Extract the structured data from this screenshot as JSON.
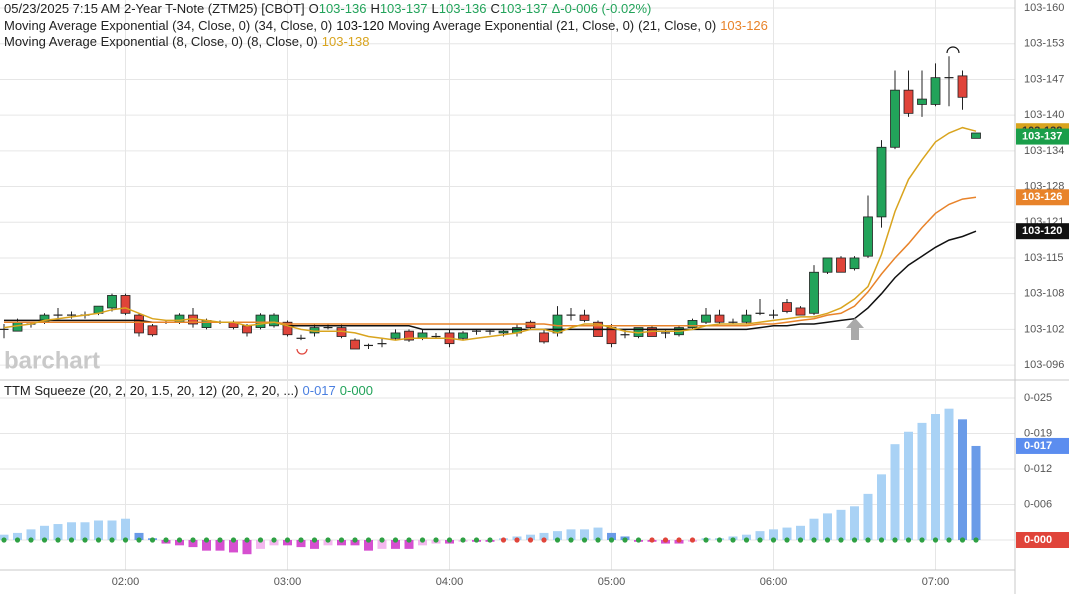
{
  "chart_data": [
    {
      "type": "candlestick",
      "title": "05/23/2025  7:15 AM 2-Year T-Note (ZTM25) [CBOT]",
      "readouts": [
        {
          "key": "O",
          "label": "103-136"
        },
        {
          "key": "H",
          "label": "103-137"
        },
        {
          "key": "L",
          "label": "103-136"
        },
        {
          "key": "C",
          "label": "103-137"
        }
      ],
      "change": "Δ-0-006 (-0.02%)",
      "watermark": "barchart",
      "categories": [
        null,
        null,
        null,
        null,
        null,
        null,
        null,
        null,
        null,
        "02:00",
        null,
        null,
        null,
        null,
        null,
        null,
        null,
        null,
        null,
        null,
        null,
        "03:00",
        null,
        null,
        null,
        null,
        null,
        null,
        null,
        null,
        null,
        null,
        null,
        "04:00",
        null,
        null,
        null,
        null,
        null,
        null,
        null,
        null,
        null,
        null,
        null,
        "05:00",
        null,
        null,
        null,
        null,
        null,
        null,
        null,
        null,
        null,
        null,
        null,
        "06:00",
        null,
        null,
        null,
        null,
        null,
        null,
        null,
        null,
        null,
        null,
        null,
        "07:00",
        null,
        null,
        null
      ],
      "ohlc": [
        [
          103.32,
          103.323,
          103.315,
          103.32
        ],
        [
          103.319,
          103.326,
          103.319,
          103.324
        ],
        [
          103.323,
          103.324,
          103.321,
          103.323
        ],
        [
          103.324,
          103.329,
          103.323,
          103.328
        ],
        [
          103.328,
          103.332,
          103.326,
          103.328
        ],
        [
          103.328,
          103.33,
          103.326,
          103.328
        ],
        [
          103.328,
          103.33,
          103.326,
          103.328
        ],
        [
          103.329,
          103.333,
          103.328,
          103.333
        ],
        [
          103.332,
          103.34,
          103.33,
          103.339
        ],
        [
          103.339,
          103.34,
          103.328,
          103.329
        ],
        [
          103.328,
          103.329,
          103.316,
          103.318
        ],
        [
          103.322,
          103.323,
          103.316,
          103.317
        ],
        [
          103.324,
          103.325,
          103.323,
          103.324
        ],
        [
          103.324,
          103.329,
          103.323,
          103.328
        ],
        [
          103.328,
          103.332,
          103.321,
          103.323
        ],
        [
          103.321,
          103.326,
          103.32,
          103.325
        ],
        [
          103.324,
          103.325,
          103.323,
          103.324
        ],
        [
          103.324,
          103.325,
          103.32,
          103.321
        ],
        [
          103.322,
          103.323,
          103.316,
          103.318
        ],
        [
          103.321,
          103.329,
          103.32,
          103.328
        ],
        [
          103.322,
          103.329,
          103.321,
          103.328
        ],
        [
          103.324,
          103.325,
          103.316,
          103.317
        ],
        [
          103.315,
          103.317,
          103.314,
          103.315
        ],
        [
          103.318,
          103.323,
          103.316,
          103.321
        ],
        [
          103.321,
          103.323,
          103.32,
          103.321
        ],
        [
          103.321,
          103.323,
          103.315,
          103.316
        ],
        [
          103.314,
          103.315,
          103.309,
          103.309
        ],
        [
          103.311,
          103.312,
          103.309,
          103.311
        ],
        [
          103.312,
          103.315,
          103.31,
          103.312
        ],
        [
          103.315,
          103.32,
          103.314,
          103.318
        ],
        [
          103.319,
          103.32,
          103.313,
          103.314
        ],
        [
          103.315,
          103.32,
          103.314,
          103.318
        ],
        [
          103.316,
          103.318,
          103.315,
          103.316
        ],
        [
          103.318,
          103.32,
          103.31,
          103.312
        ],
        [
          103.315,
          103.319,
          103.314,
          103.318
        ],
        [
          103.319,
          103.32,
          103.317,
          103.319
        ],
        [
          103.319,
          103.32,
          103.317,
          103.319
        ],
        [
          103.318,
          103.32,
          103.316,
          103.319
        ],
        [
          103.318,
          103.323,
          103.316,
          103.321
        ],
        [
          103.324,
          103.325,
          103.32,
          103.321
        ],
        [
          103.318,
          103.32,
          103.312,
          103.313
        ],
        [
          103.318,
          103.333,
          103.316,
          103.328
        ],
        [
          103.328,
          103.332,
          103.325,
          103.328
        ],
        [
          103.328,
          103.331,
          103.324,
          103.325
        ],
        [
          103.324,
          103.325,
          103.316,
          103.316
        ],
        [
          103.321,
          103.323,
          103.31,
          103.312
        ],
        [
          103.317,
          103.32,
          103.315,
          103.317
        ],
        [
          103.316,
          103.321,
          103.315,
          103.321
        ],
        [
          103.321,
          103.322,
          103.316,
          103.316
        ],
        [
          103.318,
          103.32,
          103.315,
          103.318
        ],
        [
          103.317,
          103.322,
          103.316,
          103.321
        ],
        [
          103.321,
          103.326,
          103.32,
          103.325
        ],
        [
          103.324,
          103.332,
          103.323,
          103.328
        ],
        [
          103.328,
          103.331,
          103.323,
          103.324
        ],
        [
          103.324,
          103.326,
          103.323,
          103.324
        ],
        [
          103.324,
          103.331,
          103.323,
          103.328
        ],
        [
          103.329,
          103.337,
          103.328,
          103.329
        ],
        [
          103.328,
          103.331,
          103.326,
          103.328
        ],
        [
          103.335,
          103.337,
          103.329,
          103.33
        ],
        [
          103.332,
          103.333,
          103.328,
          103.328
        ],
        [
          103.329,
          103.356,
          103.328,
          103.352
        ],
        [
          103.352,
          103.36,
          103.351,
          103.36
        ],
        [
          103.36,
          103.361,
          103.352,
          103.352
        ],
        [
          103.354,
          103.361,
          103.353,
          103.36
        ],
        [
          103.361,
          103.395,
          103.36,
          103.383
        ],
        [
          103.383,
          103.426,
          103.377,
          103.422
        ],
        [
          103.422,
          103.465,
          103.421,
          103.454
        ],
        [
          103.454,
          103.465,
          103.439,
          103.441
        ],
        [
          103.446,
          103.465,
          103.439,
          103.449
        ],
        [
          103.446,
          103.469,
          103.445,
          103.461
        ],
        [
          103.461,
          103.473,
          103.445,
          103.461
        ],
        [
          103.462,
          103.465,
          103.443,
          103.45
        ],
        [
          103.427,
          103.43,
          103.427,
          103.43
        ]
      ],
      "up_color": "#22a35a",
      "down_color": "#e0443a",
      "last_price": {
        "value": 103.428,
        "label": "103-137",
        "color": "#1a9e4a"
      },
      "series": [
        {
          "name": "Moving Average Exponential (34, Close, 0)",
          "params": "(34, Close, 0)",
          "color": "#111111",
          "last": {
            "value": 103.375,
            "label": "103-120"
          },
          "values": [
            103.325,
            103.325,
            103.325,
            103.325,
            103.325,
            103.325,
            103.325,
            103.325,
            103.325,
            103.325,
            103.325,
            103.324,
            103.324,
            103.324,
            103.324,
            103.324,
            103.324,
            103.324,
            103.324,
            103.324,
            103.324,
            103.322,
            103.322,
            103.322,
            103.322,
            103.322,
            103.322,
            103.322,
            103.322,
            103.322,
            103.322,
            103.32,
            103.32,
            103.32,
            103.32,
            103.32,
            103.32,
            103.32,
            103.32,
            103.32,
            103.32,
            103.32,
            103.32,
            103.32,
            103.32,
            103.32,
            103.32,
            103.32,
            103.32,
            103.32,
            103.32,
            103.32,
            103.32,
            103.32,
            103.32,
            103.32,
            103.321,
            103.322,
            103.322,
            103.323,
            103.323,
            103.324,
            103.325,
            103.326,
            103.332,
            103.34,
            103.349,
            103.356,
            103.361,
            103.366,
            103.37,
            103.372,
            103.375
          ]
        },
        {
          "name": "Moving Average Exponential (21, Close, 0)",
          "params": "(21, Close, 0)",
          "color": "#e8832a",
          "last": {
            "value": 103.394,
            "label": "103-126"
          },
          "values": [
            103.324,
            103.324,
            103.324,
            103.324,
            103.324,
            103.324,
            103.324,
            103.324,
            103.324,
            103.324,
            103.324,
            103.324,
            103.324,
            103.324,
            103.324,
            103.324,
            103.324,
            103.324,
            103.324,
            103.324,
            103.324,
            103.323,
            103.323,
            103.323,
            103.323,
            103.323,
            103.323,
            103.323,
            103.323,
            103.323,
            103.323,
            103.323,
            103.323,
            103.323,
            103.323,
            103.323,
            103.323,
            103.323,
            103.323,
            103.323,
            103.323,
            103.322,
            103.322,
            103.322,
            103.322,
            103.322,
            103.322,
            103.322,
            103.322,
            103.322,
            103.322,
            103.322,
            103.322,
            103.322,
            103.322,
            103.322,
            103.323,
            103.323,
            103.324,
            103.325,
            103.326,
            103.328,
            103.329,
            103.333,
            103.341,
            103.351,
            103.36,
            103.368,
            103.377,
            103.385,
            103.39,
            103.393,
            103.394
          ]
        },
        {
          "name": "Moving Average Exponential (8, Close, 0)",
          "params": "(8, Close, 0)",
          "color": "#d9a41e",
          "last": {
            "value": 103.431,
            "label": "103-138"
          },
          "values": [
            103.321,
            103.322,
            103.323,
            103.325,
            103.326,
            103.327,
            103.328,
            103.329,
            103.331,
            103.332,
            103.329,
            103.326,
            103.325,
            103.325,
            103.326,
            103.325,
            103.324,
            103.324,
            103.322,
            103.323,
            103.324,
            103.322,
            103.32,
            103.319,
            103.319,
            103.319,
            103.318,
            103.316,
            103.315,
            103.314,
            103.315,
            103.315,
            103.315,
            103.315,
            103.314,
            103.315,
            103.316,
            103.317,
            103.318,
            103.32,
            103.32,
            103.318,
            103.321,
            103.323,
            103.323,
            103.321,
            103.319,
            103.318,
            103.319,
            103.319,
            103.319,
            103.32,
            103.322,
            103.323,
            103.323,
            103.323,
            103.324,
            103.325,
            103.326,
            103.327,
            103.327,
            103.329,
            103.332,
            103.337,
            103.344,
            103.362,
            103.386,
            103.404,
            103.415,
            103.425,
            103.43,
            103.433,
            103.431
          ]
        }
      ],
      "ylim": [
        103.2922,
        103.5045
      ],
      "yticks": [
        {
          "value": 103.5,
          "label": "103-160"
        },
        {
          "value": 103.48,
          "label": "103-153"
        },
        {
          "value": 103.46,
          "label": "103-147"
        },
        {
          "value": 103.44,
          "label": "103-140"
        },
        {
          "value": 103.42,
          "label": "103-134"
        },
        {
          "value": 103.4,
          "label": "103-128"
        },
        {
          "value": 103.38,
          "label": "103-121"
        },
        {
          "value": 103.36,
          "label": "103-115"
        },
        {
          "value": 103.34,
          "label": "103-108"
        },
        {
          "value": 103.32,
          "label": "103-102"
        },
        {
          "value": 103.3,
          "label": "103-096"
        }
      ],
      "grid": true
    },
    {
      "type": "histogram",
      "title": "TTM Squeeze (20, 2, 20, 1.5, 20, 12)",
      "params": "(20, 2, 20, ...)",
      "readouts": [
        {
          "label": "0-017",
          "color": "#4a7fe0"
        },
        {
          "label": "0-000",
          "color": "#22a35a"
        }
      ],
      "values": [
        0.003,
        0.004,
        0.006,
        0.008,
        0.009,
        0.01,
        0.01,
        0.011,
        0.011,
        0.012,
        0.004,
        0.001,
        -0.002,
        -0.003,
        -0.004,
        -0.006,
        -0.006,
        -0.007,
        -0.008,
        -0.005,
        -0.003,
        -0.003,
        -0.004,
        -0.005,
        -0.003,
        -0.003,
        -0.003,
        -0.006,
        -0.005,
        -0.005,
        -0.005,
        -0.003,
        -0.002,
        -0.002,
        -0.001,
        -0.001,
        -0.001,
        0.001,
        0.002,
        0.003,
        0.004,
        0.005,
        0.006,
        0.006,
        0.007,
        0.004,
        0.002,
        -0.001,
        -0.001,
        -0.002,
        -0.002,
        -0.001,
        0.001,
        0.001,
        0.002,
        0.003,
        0.005,
        0.006,
        0.007,
        0.008,
        0.012,
        0.015,
        0.017,
        0.019,
        0.026,
        0.037,
        0.054,
        0.061,
        0.066,
        0.071,
        0.074,
        0.068,
        0.053
      ],
      "palette": {
        "positive_rising": "#a9d2f5",
        "positive_falling": "#6a9be8",
        "negative_falling": "#d64fd0",
        "negative_rising": "#f3b6ee"
      },
      "dot_color": "#2ea043",
      "squeeze_color": "#e0443a",
      "squeeze_on": [
        [
          37,
          40
        ],
        [
          48,
          51
        ]
      ],
      "badges": [
        {
          "value": 0.053,
          "label": "0-017",
          "color": "#5b8def"
        },
        {
          "value": 0,
          "label": "0-000",
          "color": "#e0443a"
        }
      ],
      "ylim": [
        -0.0169,
        0.0896
      ],
      "yticks": [
        {
          "value": 0.08,
          "label": "0-025"
        },
        {
          "value": 0.06,
          "label": "0-019"
        },
        {
          "value": 0.04,
          "label": "0-012"
        },
        {
          "value": 0.02,
          "label": "0-006"
        },
        {
          "value": 0,
          "label": "0-000"
        }
      ],
      "grid": true
    }
  ]
}
